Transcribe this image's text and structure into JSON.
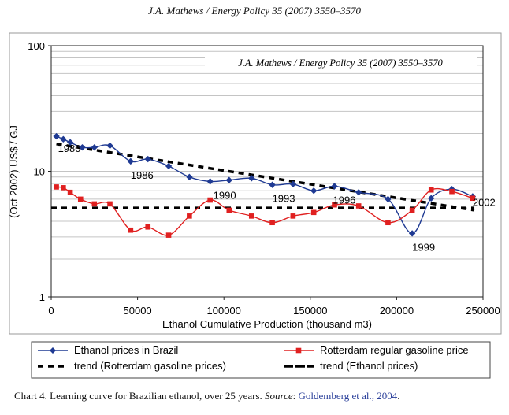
{
  "header": {
    "running_title": "J.A. Mathews / Energy Policy 35 (2007) 3550–3570"
  },
  "caption": {
    "lead": "Chart 4.  Learning curve for Brazilian ethanol, over 25 years. ",
    "source_label": "Source",
    "colon": ": ",
    "ref": "Goldemberg et al., 2004",
    "end": "."
  },
  "chart_data": {
    "type": "line",
    "title": "",
    "inset_text": "J.A. Mathews / Energy Policy 35 (2007) 3550–3570",
    "xlabel": "Ethanol Cumulative Production (thousand m3)",
    "ylabel": "(Oct 2002) US$ / GJ",
    "xlim": [
      0,
      250000
    ],
    "ylim": [
      1,
      100
    ],
    "y_scale": "log",
    "grid": true,
    "legend_position": "bottom",
    "x_ticks": [
      0,
      50000,
      100000,
      150000,
      200000,
      250000
    ],
    "x_tick_labels": [
      "0",
      "50000",
      "100000",
      "150000",
      "200000",
      "250000"
    ],
    "y_ticks": [
      1,
      10,
      100
    ],
    "y_tick_labels": [
      "1",
      "10",
      "100"
    ],
    "series": [
      {
        "name": "Ethanol prices in Brazil",
        "color": "#1f3a93",
        "marker": "diamond",
        "x": [
          3000,
          7000,
          11000,
          18000,
          25000,
          34000,
          46000,
          56000,
          68000,
          80000,
          92000,
          103000,
          116000,
          128000,
          140000,
          152000,
          164000,
          178000,
          195000,
          209000,
          220000,
          232000,
          244000
        ],
        "y": [
          19,
          18,
          17,
          15.5,
          15.5,
          16,
          12,
          12.5,
          11,
          9,
          8.3,
          8.5,
          8.8,
          7.8,
          7.9,
          7,
          7.6,
          6.8,
          6,
          3.2,
          6.1,
          7.2,
          6.3
        ]
      },
      {
        "name": "Rotterdam regular gasoline price",
        "color": "#e02020",
        "marker": "square",
        "x": [
          3000,
          7000,
          11000,
          17000,
          25000,
          34000,
          46000,
          56000,
          68000,
          80000,
          92000,
          103000,
          116000,
          128000,
          140000,
          152000,
          164000,
          178000,
          195000,
          209000,
          220000,
          232000,
          244000
        ],
        "y": [
          7.5,
          7.4,
          6.8,
          6,
          5.5,
          5.5,
          3.4,
          3.6,
          3.1,
          4.4,
          5.9,
          4.9,
          4.4,
          3.9,
          4.4,
          4.7,
          5.4,
          5.3,
          3.9,
          4.9,
          7.1,
          6.9,
          6.1
        ]
      },
      {
        "name": "trend (Rotterdam gasoline prices)",
        "color": "#000000",
        "style": "dashed",
        "x": [
          0,
          245000
        ],
        "y": [
          5.1,
          5.1
        ]
      },
      {
        "name": "trend (Ethanol prices)",
        "color": "#000000",
        "style": "dashed",
        "x": [
          3000,
          245000
        ],
        "y": [
          16.5,
          4.9
        ]
      }
    ],
    "annotations": [
      {
        "text": "1980",
        "x": 3000,
        "y": 19
      },
      {
        "text": "1986",
        "x": 46000,
        "y": 12
      },
      {
        "text": "1990",
        "x": 92000,
        "y": 8.3
      },
      {
        "text": "1993",
        "x": 128000,
        "y": 7.8
      },
      {
        "text": "1996",
        "x": 164000,
        "y": 7.6
      },
      {
        "text": "1999",
        "x": 209000,
        "y": 3.2
      },
      {
        "text": "2002",
        "x": 244000,
        "y": 6.3
      }
    ]
  }
}
